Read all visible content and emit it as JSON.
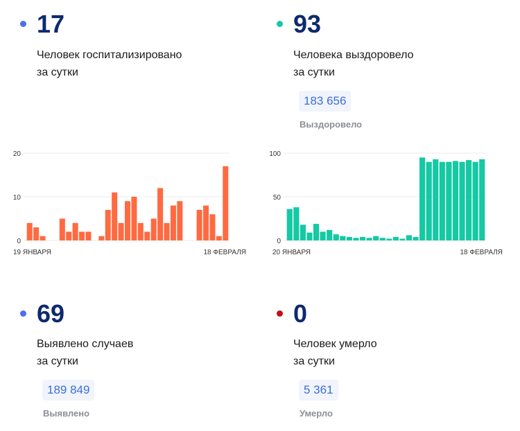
{
  "stats": {
    "hospitalized": {
      "value": "17",
      "line1": "Человек госпитализировано",
      "line2": "за сутки",
      "dot_color": "#4d6ef0"
    },
    "recovered": {
      "value": "93",
      "line1": "Человека выздоровело",
      "line2": "за сутки",
      "total": "183 656",
      "total_label": "Выздоровело",
      "dot_color": "#14c9a4"
    },
    "detected": {
      "value": "69",
      "line1": "Выявлено случаев",
      "line2": "за сутки",
      "total": "189 849",
      "total_label": "Выявлено",
      "dot_color": "#4d6ef0"
    },
    "died": {
      "value": "0",
      "line1": "Человек умерло",
      "line2": "за сутки",
      "total": "5 361",
      "total_label": "Умерло",
      "dot_color": "#c0101c"
    }
  },
  "chart_data": [
    {
      "type": "bar",
      "color": "#ff6a41",
      "x_start_label": "19 ЯНВАРЯ",
      "x_end_label": "18 ФЕВРАЛЯ",
      "yticks": [
        0,
        10,
        20
      ],
      "ylim": [
        0,
        20
      ],
      "grid": true,
      "values": [
        4,
        3,
        1,
        0,
        0,
        5,
        2,
        4,
        2,
        2,
        0,
        1,
        7,
        11,
        4,
        9,
        10,
        4,
        2,
        5,
        12,
        4,
        8,
        9,
        0,
        0,
        7,
        8,
        6,
        1,
        17
      ]
    },
    {
      "type": "bar",
      "color": "#14c9a4",
      "x_start_label": "20 ЯНВАРЯ",
      "x_end_label": "18 ФЕВРАЛЯ",
      "yticks": [
        0,
        50,
        100
      ],
      "ylim": [
        0,
        100
      ],
      "grid": true,
      "values": [
        36,
        38,
        18,
        9,
        19,
        10,
        12,
        7,
        5,
        4,
        3,
        4,
        3,
        5,
        3,
        2,
        4,
        2,
        6,
        4,
        95,
        90,
        93,
        90,
        90,
        91,
        90,
        92,
        90,
        93
      ]
    }
  ]
}
